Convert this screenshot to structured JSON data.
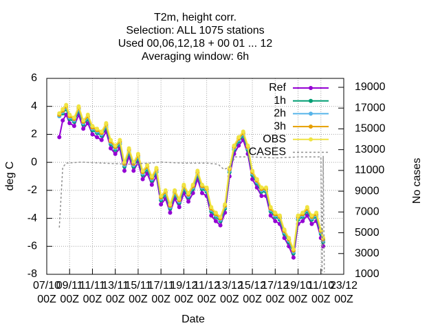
{
  "chart_data": {
    "type": "line",
    "title": [
      "T2m, height corr.",
      "Selection: ALL    1075 stations",
      "Used  00,06,12,18 + 00 01 ... 12",
      "Averaging window:  6h"
    ],
    "xlabel": "Date",
    "ylabel": "deg C",
    "y2label": "No cases",
    "grid": true,
    "legend": "top-right",
    "xlim": [
      0,
      26
    ],
    "ylim": [
      -8,
      6
    ],
    "y2lim": [
      1000,
      19860
    ],
    "yticks": [
      -8,
      -6,
      -4,
      -2,
      0,
      2,
      4,
      6
    ],
    "y2ticks": [
      1000,
      3000,
      5000,
      7000,
      9000,
      11000,
      13000,
      15000,
      17000,
      19000
    ],
    "xticks": [
      {
        "value": 0,
        "label": "07/10\n00Z"
      },
      {
        "value": 2,
        "label": "09/11\n00Z"
      },
      {
        "value": 4,
        "label": "11/11\n00Z"
      },
      {
        "value": 6,
        "label": "13/11\n00Z"
      },
      {
        "value": 8,
        "label": "15/11\n00Z"
      },
      {
        "value": 10,
        "label": "17/11\n00Z"
      },
      {
        "value": 12,
        "label": "19/12\n00Z"
      },
      {
        "value": 14,
        "label": "11/12\n00Z"
      },
      {
        "value": 16,
        "label": "13/12\n00Z"
      },
      {
        "value": 18,
        "label": "15/12\n00Z"
      },
      {
        "value": 20,
        "label": "17/12\n00Z"
      },
      {
        "value": 22,
        "label": "19/10\n00Z"
      },
      {
        "value": 24,
        "label": "11/10\n00Z"
      },
      {
        "value": 26,
        "label": "23/12\n00Z"
      }
    ],
    "x": [
      1.1,
      1.4,
      1.7,
      2.0,
      2.4,
      2.8,
      3.2,
      3.6,
      4.0,
      4.4,
      4.8,
      5.2,
      5.6,
      6.0,
      6.4,
      6.8,
      7.2,
      7.6,
      8.0,
      8.4,
      8.8,
      9.2,
      9.6,
      10.0,
      10.4,
      10.8,
      11.2,
      11.6,
      12.0,
      12.4,
      12.8,
      13.2,
      13.6,
      14.0,
      14.4,
      14.8,
      15.2,
      15.6,
      16.0,
      16.4,
      16.8,
      17.2,
      17.6,
      18.0,
      18.4,
      18.8,
      19.2,
      19.6,
      20.0,
      20.4,
      20.8,
      21.2,
      21.6,
      22.0,
      22.4,
      22.8,
      23.2,
      23.6,
      24.0,
      24.2
    ],
    "series": [
      {
        "name": "Ref",
        "color": "#9400d3",
        "values": [
          1.8,
          3.0,
          3.4,
          2.8,
          2.6,
          3.4,
          2.4,
          2.8,
          2.0,
          1.8,
          1.6,
          2.2,
          1.0,
          0.6,
          1.0,
          -0.6,
          0.4,
          -0.6,
          0.0,
          -1.2,
          -0.8,
          -1.6,
          -1.0,
          -3.0,
          -2.6,
          -3.6,
          -2.6,
          -3.2,
          -2.2,
          -2.8,
          -2.2,
          -1.2,
          -2.2,
          -2.4,
          -3.8,
          -4.2,
          -4.5,
          -3.6,
          -1.0,
          0.6,
          1.2,
          1.6,
          0.6,
          -1.2,
          -1.8,
          -2.4,
          -2.4,
          -3.8,
          -4.2,
          -4.4,
          -5.4,
          -6.0,
          -6.8,
          -4.4,
          -4.2,
          -3.8,
          -4.4,
          -4.2,
          -5.4,
          -6.0
        ]
      },
      {
        "name": "1h",
        "color": "#009e73",
        "values": [
          3.3,
          3.5,
          3.8,
          3.1,
          2.9,
          3.7,
          2.7,
          3.1,
          2.3,
          2.1,
          1.9,
          2.5,
          1.3,
          0.9,
          1.3,
          -0.3,
          0.7,
          -0.3,
          0.3,
          -0.9,
          -0.5,
          -1.3,
          -0.7,
          -2.7,
          -2.3,
          -3.3,
          -2.3,
          -2.9,
          -1.9,
          -2.5,
          -1.9,
          -0.9,
          -1.9,
          -2.1,
          -3.5,
          -3.9,
          -4.2,
          -3.3,
          -0.7,
          0.9,
          1.5,
          1.9,
          0.9,
          -0.9,
          -1.5,
          -2.1,
          -2.1,
          -3.5,
          -3.9,
          -4.1,
          -5.1,
          -5.7,
          -6.5,
          -4.1,
          -3.9,
          -3.5,
          -4.1,
          -3.9,
          -5.1,
          -5.7
        ]
      },
      {
        "name": "2h",
        "color": "#56b4e9",
        "values": [
          3.3,
          3.6,
          3.9,
          3.2,
          3.0,
          3.8,
          2.8,
          3.2,
          2.4,
          2.2,
          2.0,
          2.6,
          1.4,
          1.0,
          1.4,
          -0.2,
          0.8,
          -0.2,
          0.4,
          -0.8,
          -0.4,
          -1.2,
          -0.6,
          -2.6,
          -2.2,
          -3.2,
          -2.2,
          -2.8,
          -1.8,
          -2.4,
          -1.8,
          -0.8,
          -1.8,
          -2.0,
          -3.4,
          -3.8,
          -4.1,
          -3.2,
          -0.6,
          1.0,
          1.6,
          2.0,
          1.0,
          -0.8,
          -1.4,
          -2.0,
          -2.0,
          -3.4,
          -3.8,
          -4.0,
          -5.0,
          -5.6,
          -6.4,
          -4.0,
          -3.8,
          -3.4,
          -4.0,
          -3.8,
          -5.0,
          -5.6
        ]
      },
      {
        "name": "3h",
        "color": "#e69f00",
        "values": [
          3.4,
          3.7,
          4.0,
          3.3,
          3.1,
          3.9,
          2.9,
          3.3,
          2.5,
          2.3,
          2.1,
          2.7,
          1.5,
          1.1,
          1.5,
          -0.1,
          0.9,
          -0.1,
          0.5,
          -0.7,
          -0.3,
          -1.1,
          -0.5,
          -2.5,
          -2.1,
          -3.1,
          -2.1,
          -2.7,
          -1.7,
          -2.3,
          -1.7,
          -0.7,
          -1.7,
          -1.9,
          -3.3,
          -3.7,
          -4.0,
          -3.1,
          -0.5,
          1.1,
          1.7,
          2.1,
          1.1,
          -0.7,
          -1.3,
          -1.9,
          -1.9,
          -3.3,
          -3.7,
          -3.9,
          -4.9,
          -5.5,
          -6.3,
          -3.9,
          -3.7,
          -3.3,
          -3.9,
          -3.7,
          -4.9,
          -5.5
        ]
      },
      {
        "name": "OBS",
        "color": "#f0e442",
        "values": [
          3.5,
          3.8,
          4.1,
          3.4,
          3.2,
          4.0,
          3.0,
          3.4,
          2.6,
          2.4,
          2.2,
          2.8,
          1.6,
          1.2,
          1.6,
          0.0,
          1.0,
          0.0,
          0.6,
          -0.6,
          -0.2,
          -1.0,
          -0.4,
          -2.4,
          -2.0,
          -3.0,
          -2.0,
          -2.6,
          -1.6,
          -2.2,
          -1.6,
          -0.6,
          -1.6,
          -1.8,
          -3.2,
          -3.6,
          -3.9,
          -3.0,
          -0.4,
          1.2,
          1.8,
          2.2,
          1.2,
          -0.6,
          -1.2,
          -1.8,
          -1.8,
          -3.2,
          -3.6,
          -3.8,
          -4.8,
          -5.4,
          -6.2,
          -3.8,
          -3.6,
          -3.2,
          -3.8,
          -3.6,
          -4.8,
          -5.4
        ]
      },
      {
        "name": "CASES",
        "color": "#909090",
        "axis": "y2",
        "x": [
          1.1,
          1.4,
          1.7,
          3,
          5,
          7,
          9,
          10,
          12,
          14,
          15,
          15.5,
          16,
          16.5,
          18,
          20,
          22,
          24,
          24.1,
          24.2,
          24.3
        ],
        "values": [
          5500,
          11300,
          11700,
          11800,
          11700,
          11600,
          11700,
          11800,
          11700,
          11700,
          11600,
          11100,
          11300,
          12300,
          12300,
          12200,
          12300,
          12300,
          1000,
          12400,
          1200
        ]
      }
    ]
  }
}
